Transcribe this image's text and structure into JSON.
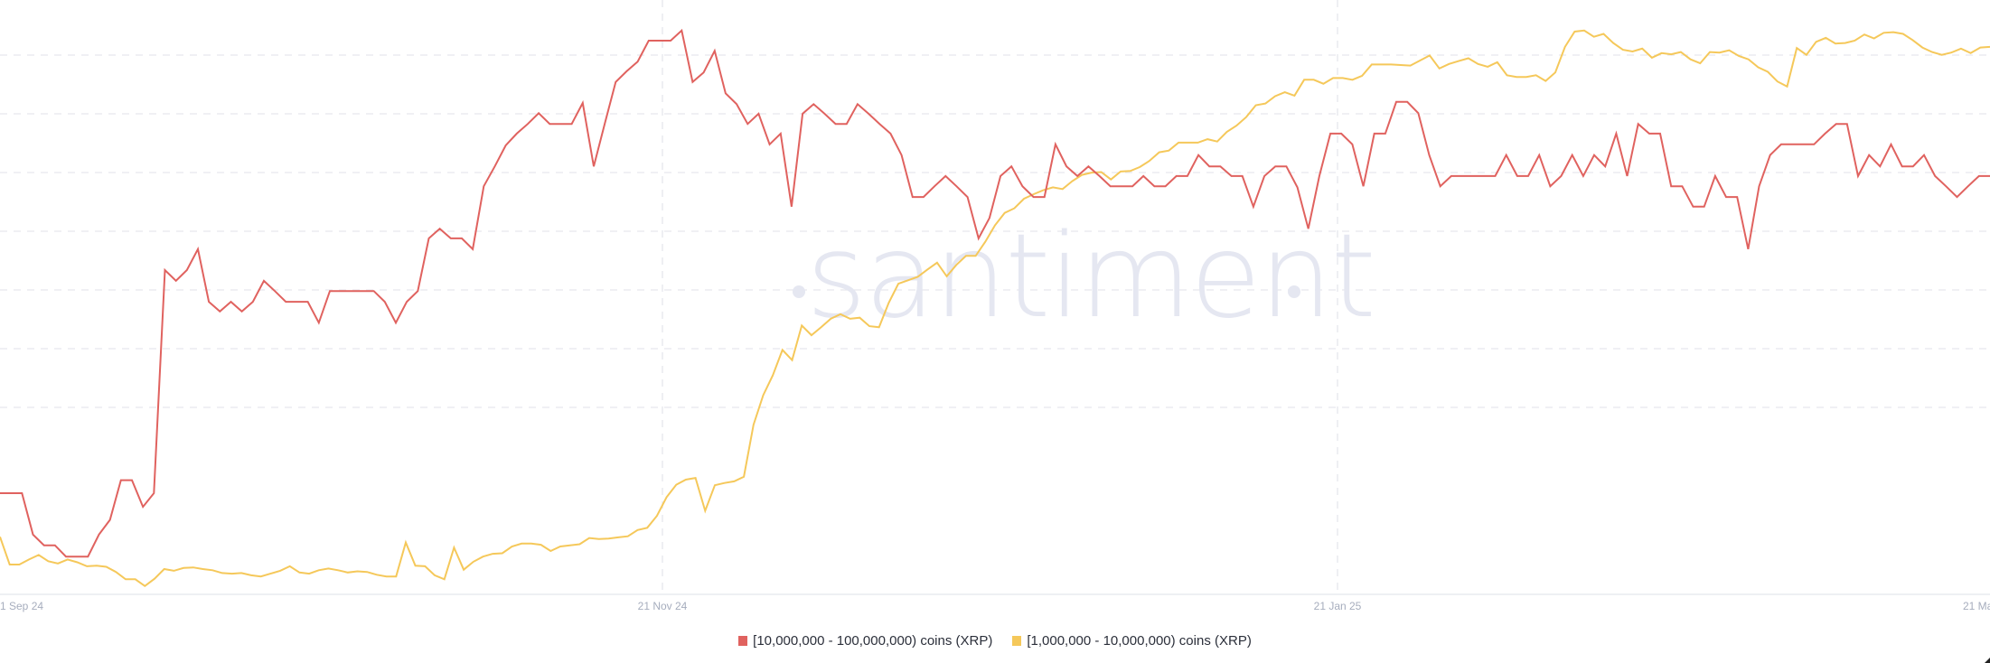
{
  "chart_data": {
    "type": "line",
    "title": "",
    "xlabel": "",
    "ylabel": "",
    "y_axis_labels_visible": false,
    "value_scale_note": "relative height 0-100 (no y tick labels shown)",
    "ylim": [
      0,
      100
    ],
    "grid": true,
    "legend_position": "bottom-center",
    "x_tick_labels": [
      "1 Sep 24",
      "21 Nov 24",
      "21 Jan 25",
      "21 Ma"
    ],
    "watermark": "·santiment·",
    "series": [
      {
        "name": "[10,000,000 - 100,000,000) coins (XRP)",
        "color": "#e0625f",
        "values": [
          17.7,
          17.7,
          17.7,
          10.4,
          8.5,
          8.5,
          6.5,
          6.5,
          6.5,
          10.4,
          13.0,
          20.0,
          20.0,
          15.3,
          17.7,
          57.1,
          55.2,
          57.1,
          60.8,
          51.5,
          49.8,
          51.5,
          49.8,
          51.5,
          55.2,
          53.4,
          51.5,
          51.5,
          51.5,
          47.8,
          53.4,
          53.4,
          53.4,
          53.4,
          53.4,
          51.5,
          47.8,
          51.5,
          53.4,
          62.7,
          64.4,
          62.7,
          62.7,
          60.8,
          71.9,
          75.4,
          79.1,
          81.2,
          82.9,
          84.8,
          82.9,
          82.9,
          82.9,
          86.6,
          75.4,
          82.9,
          90.3,
          92.2,
          93.9,
          97.6,
          97.6,
          97.6,
          99.4,
          90.3,
          92.0,
          95.8,
          88.3,
          86.4,
          82.9,
          84.7,
          79.3,
          81.2,
          68.3,
          84.7,
          86.4,
          84.7,
          82.9,
          82.9,
          86.4,
          84.7,
          82.9,
          81.2,
          77.4,
          70.0,
          70.0,
          71.9,
          73.7,
          71.9,
          70.0,
          62.7,
          66.3,
          73.7,
          75.4,
          71.9,
          70.0,
          70.0,
          79.3,
          75.4,
          73.7,
          75.4,
          73.7,
          71.9,
          71.9,
          71.9,
          73.7,
          71.9,
          71.9,
          73.7,
          73.7,
          77.4,
          75.4,
          75.4,
          73.7,
          73.7,
          68.3,
          73.7,
          75.4,
          75.4,
          71.7,
          64.4,
          73.7,
          81.2,
          81.2,
          79.3,
          71.9,
          81.2,
          81.2,
          86.8,
          86.8,
          84.8,
          77.4,
          71.9,
          73.7,
          73.7,
          73.7,
          73.7,
          73.7,
          77.4,
          73.7,
          73.7,
          77.4,
          71.9,
          73.7,
          77.4,
          73.7,
          77.4,
          75.4,
          81.2,
          73.7,
          82.9,
          81.2,
          81.2,
          71.9,
          71.9,
          68.3,
          68.3,
          73.7,
          70.0,
          70.0,
          60.8,
          71.9,
          77.4,
          79.3,
          79.3,
          79.3,
          79.3,
          81.2,
          82.9,
          82.9,
          73.7,
          77.4,
          75.4,
          79.3,
          75.4,
          75.4,
          77.4,
          73.7,
          71.9,
          70.0,
          71.9,
          73.7,
          73.7
        ]
      },
      {
        "name": "[1,000,000 - 10,000,000) coins (XRP)",
        "color": "#f5c85a",
        "values": [
          10.0,
          5.1,
          5.1,
          6.0,
          6.8,
          5.7,
          5.3,
          6.0,
          5.5,
          4.8,
          4.9,
          4.7,
          3.8,
          2.5,
          2.5,
          1.3,
          2.6,
          4.3,
          4.0,
          4.5,
          4.6,
          4.3,
          4.1,
          3.6,
          3.5,
          3.6,
          3.2,
          3.0,
          3.5,
          4.0,
          4.8,
          3.7,
          3.5,
          4.1,
          4.4,
          4.1,
          3.7,
          3.9,
          3.8,
          3.3,
          3.0,
          3.0,
          9.0,
          4.9,
          4.8,
          3.2,
          2.5,
          8.1,
          4.2,
          5.6,
          6.5,
          7.0,
          7.1,
          8.3,
          8.8,
          8.8,
          8.6,
          7.5,
          8.3,
          8.5,
          8.7,
          9.8,
          9.6,
          9.7,
          9.9,
          10.1,
          11.2,
          11.6,
          13.7,
          17.0,
          19.2,
          20.1,
          20.4,
          14.6,
          19.1,
          19.5,
          19.8,
          20.6,
          29.8,
          35.0,
          38.5,
          43.0,
          41.2,
          47.3,
          45.6,
          47.0,
          48.5,
          49.3,
          48.5,
          48.7,
          47.2,
          47.0,
          51.3,
          54.7,
          55.3,
          55.9,
          57.2,
          58.4,
          56.0,
          58.0,
          59.6,
          59.6,
          62.1,
          65.0,
          67.2,
          68.0,
          69.7,
          70.5,
          71.2,
          71.7,
          71.4,
          72.8,
          73.9,
          74.3,
          74.4,
          73.1,
          74.5,
          74.6,
          75.3,
          76.4,
          77.9,
          78.2,
          79.6,
          79.6,
          79.6,
          80.2,
          79.8,
          81.5,
          82.6,
          84.1,
          86.2,
          86.5,
          87.8,
          88.5,
          87.9,
          90.7,
          90.7,
          90.0,
          91.0,
          91.0,
          90.7,
          91.4,
          93.4,
          93.4,
          93.4,
          93.3,
          93.2,
          94.1,
          95.0,
          92.7,
          93.5,
          94.0,
          94.5,
          93.5,
          93.0,
          93.8,
          91.5,
          91.2,
          91.2,
          91.5,
          90.5,
          92.0,
          96.5,
          99.2,
          99.4,
          98.3,
          98.8,
          97.2,
          96.0,
          95.7,
          96.2,
          94.6,
          95.4,
          95.2,
          95.6,
          94.3,
          93.6,
          95.6,
          95.5,
          95.9,
          94.9,
          94.3,
          92.9,
          92.1,
          90.4,
          89.5,
          96.3,
          95.1,
          97.4,
          98.1,
          97.1,
          97.2,
          97.6,
          98.7,
          98.0,
          99.0,
          99.1,
          98.8,
          97.7,
          96.4,
          95.6,
          95.1,
          95.5,
          96.2,
          95.4,
          96.4,
          96.5
        ]
      }
    ]
  },
  "legend": {
    "items": [
      {
        "label": "[10,000,000 - 100,000,000) coins (XRP)",
        "color": "#e0625f"
      },
      {
        "label": "[1,000,000 - 10,000,000) coins (XRP)",
        "color": "#f5c85a"
      }
    ]
  }
}
